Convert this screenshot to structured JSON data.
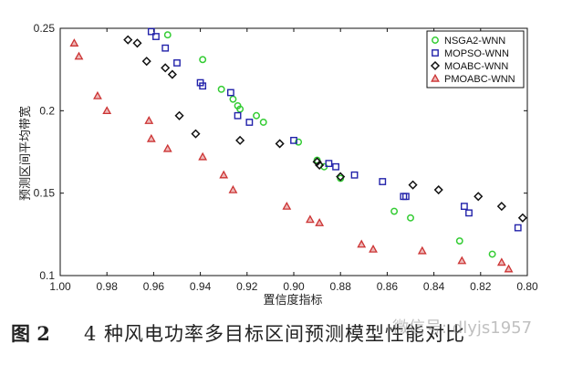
{
  "chart_data": {
    "type": "scatter",
    "title": "",
    "xlabel": "置信度指标",
    "ylabel": "预测区间平均带宽",
    "xlim": [
      1.0,
      0.8
    ],
    "ylim": [
      0.1,
      0.25
    ],
    "x_reversed": true,
    "xticks": [
      "1.00",
      "0.98",
      "0.96",
      "0.94",
      "0.92",
      "0.90",
      "0.88",
      "0.86",
      "0.84",
      "0.82",
      "0.80"
    ],
    "yticks": [
      "0.1",
      "0.15",
      "0.2",
      "0.25"
    ],
    "grid": false,
    "legend_position": "top-right",
    "series": [
      {
        "name": "NSGA2-WNN",
        "marker": "circle",
        "color": "#33cc33",
        "points": [
          [
            0.954,
            0.246
          ],
          [
            0.939,
            0.231
          ],
          [
            0.931,
            0.213
          ],
          [
            0.926,
            0.207
          ],
          [
            0.924,
            0.203
          ],
          [
            0.923,
            0.201
          ],
          [
            0.916,
            0.197
          ],
          [
            0.913,
            0.193
          ],
          [
            0.898,
            0.181
          ],
          [
            0.89,
            0.17
          ],
          [
            0.887,
            0.166
          ],
          [
            0.88,
            0.159
          ],
          [
            0.857,
            0.139
          ],
          [
            0.85,
            0.135
          ],
          [
            0.829,
            0.121
          ],
          [
            0.815,
            0.113
          ]
        ]
      },
      {
        "name": "MOPSO-WNN",
        "marker": "square",
        "color": "#2222aa",
        "points": [
          [
            0.961,
            0.248
          ],
          [
            0.959,
            0.245
          ],
          [
            0.955,
            0.238
          ],
          [
            0.95,
            0.229
          ],
          [
            0.94,
            0.217
          ],
          [
            0.939,
            0.215
          ],
          [
            0.927,
            0.211
          ],
          [
            0.924,
            0.197
          ],
          [
            0.919,
            0.193
          ],
          [
            0.9,
            0.182
          ],
          [
            0.885,
            0.168
          ],
          [
            0.882,
            0.166
          ],
          [
            0.874,
            0.161
          ],
          [
            0.862,
            0.157
          ],
          [
            0.853,
            0.148
          ],
          [
            0.852,
            0.148
          ],
          [
            0.827,
            0.142
          ],
          [
            0.825,
            0.138
          ],
          [
            0.804,
            0.129
          ]
        ]
      },
      {
        "name": "MOABC-WNN",
        "marker": "diamond",
        "color": "#111111",
        "points": [
          [
            0.971,
            0.243
          ],
          [
            0.967,
            0.241
          ],
          [
            0.963,
            0.23
          ],
          [
            0.955,
            0.226
          ],
          [
            0.952,
            0.222
          ],
          [
            0.949,
            0.197
          ],
          [
            0.942,
            0.186
          ],
          [
            0.923,
            0.182
          ],
          [
            0.906,
            0.18
          ],
          [
            0.89,
            0.169
          ],
          [
            0.889,
            0.167
          ],
          [
            0.88,
            0.16
          ],
          [
            0.849,
            0.155
          ],
          [
            0.838,
            0.152
          ],
          [
            0.821,
            0.148
          ],
          [
            0.811,
            0.142
          ],
          [
            0.802,
            0.135
          ]
        ]
      },
      {
        "name": "PMOABC-WNN",
        "marker": "triangle",
        "color": "#cc3333",
        "points": [
          [
            0.994,
            0.241
          ],
          [
            0.992,
            0.233
          ],
          [
            0.984,
            0.209
          ],
          [
            0.98,
            0.2
          ],
          [
            0.962,
            0.194
          ],
          [
            0.961,
            0.183
          ],
          [
            0.954,
            0.177
          ],
          [
            0.939,
            0.172
          ],
          [
            0.93,
            0.161
          ],
          [
            0.926,
            0.152
          ],
          [
            0.903,
            0.142
          ],
          [
            0.893,
            0.134
          ],
          [
            0.889,
            0.132
          ],
          [
            0.871,
            0.119
          ],
          [
            0.866,
            0.116
          ],
          [
            0.845,
            0.115
          ],
          [
            0.828,
            0.109
          ],
          [
            0.811,
            0.108
          ],
          [
            0.808,
            0.104
          ]
        ]
      }
    ]
  },
  "caption": {
    "label": "图 2",
    "title": "4 种风电功率多目标区间预测模型性能对比"
  },
  "watermark": {
    "text": "微信号: dlyjs1957"
  }
}
